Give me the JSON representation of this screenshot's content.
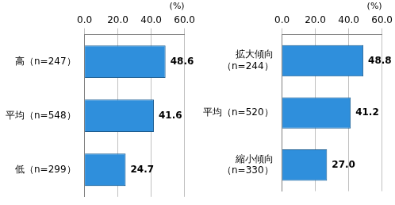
{
  "chart_data": [
    {
      "type": "bar",
      "orientation": "horizontal",
      "categories": [
        "高（n=247）",
        "平均（n=548）",
        "低（n=299）"
      ],
      "values": [
        48.6,
        41.6,
        24.7
      ],
      "value_labels": [
        "48.6",
        "41.6",
        "24.7"
      ],
      "color": "#2f8fdc",
      "xlabel": "(%)",
      "xlim": [
        0,
        60
      ],
      "xticks": [
        {
          "value": 0,
          "label": "0.0"
        },
        {
          "value": 20,
          "label": "20.0"
        },
        {
          "value": 40,
          "label": "40.0"
        },
        {
          "value": 60,
          "label": "60.0"
        }
      ],
      "grid": true,
      "data_labels": true
    },
    {
      "type": "bar",
      "orientation": "horizontal",
      "categories": [
        "拡大傾向\n（n=244）",
        "平均（n=520）",
        "縮小傾向\n（n=330）"
      ],
      "values": [
        48.8,
        41.2,
        27.0
      ],
      "value_labels": [
        "48.8",
        "41.2",
        "27.0"
      ],
      "color": "#2f8fdc",
      "xlabel": "(%)",
      "xlim": [
        0,
        60
      ],
      "xticks": [
        {
          "value": 0,
          "label": "0.0"
        },
        {
          "value": 20,
          "label": "20.0"
        },
        {
          "value": 40,
          "label": "40.0"
        },
        {
          "value": 60,
          "label": "60.0"
        }
      ],
      "grid": true,
      "data_labels": true
    }
  ]
}
